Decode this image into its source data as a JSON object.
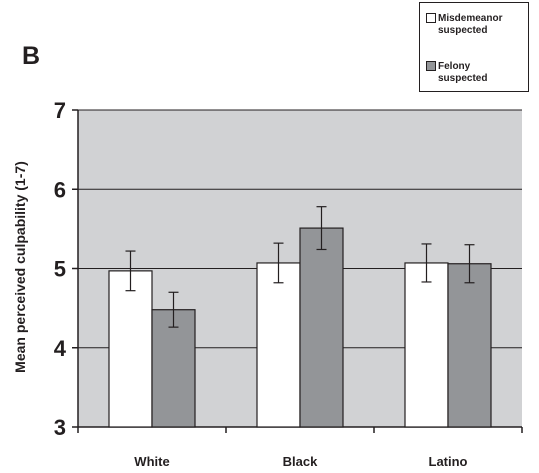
{
  "panel_label": "B",
  "chart_data": {
    "type": "bar",
    "title": "",
    "xlabel": "",
    "ylabel": "Mean perceived culpability (1-7)",
    "ylim": [
      3,
      7
    ],
    "yticks": [
      "3",
      "4",
      "5",
      "6",
      "7"
    ],
    "categories": [
      "White",
      "Black",
      "Latino"
    ],
    "grid": true,
    "legend_position": "top-right",
    "series": [
      {
        "name": "Misdemeanor suspected",
        "name_lines": [
          "Misdemeanor",
          "suspected"
        ],
        "color": "#ffffff",
        "values": [
          4.97,
          5.07,
          5.07
        ],
        "errors": [
          0.25,
          0.25,
          0.24
        ]
      },
      {
        "name": "Felony suspected",
        "name_lines": [
          "Felony",
          "suspected"
        ],
        "color": "#939598",
        "values": [
          4.48,
          5.51,
          5.06
        ],
        "errors": [
          0.22,
          0.27,
          0.24
        ]
      }
    ],
    "plot_background": "#d1d2d4"
  }
}
